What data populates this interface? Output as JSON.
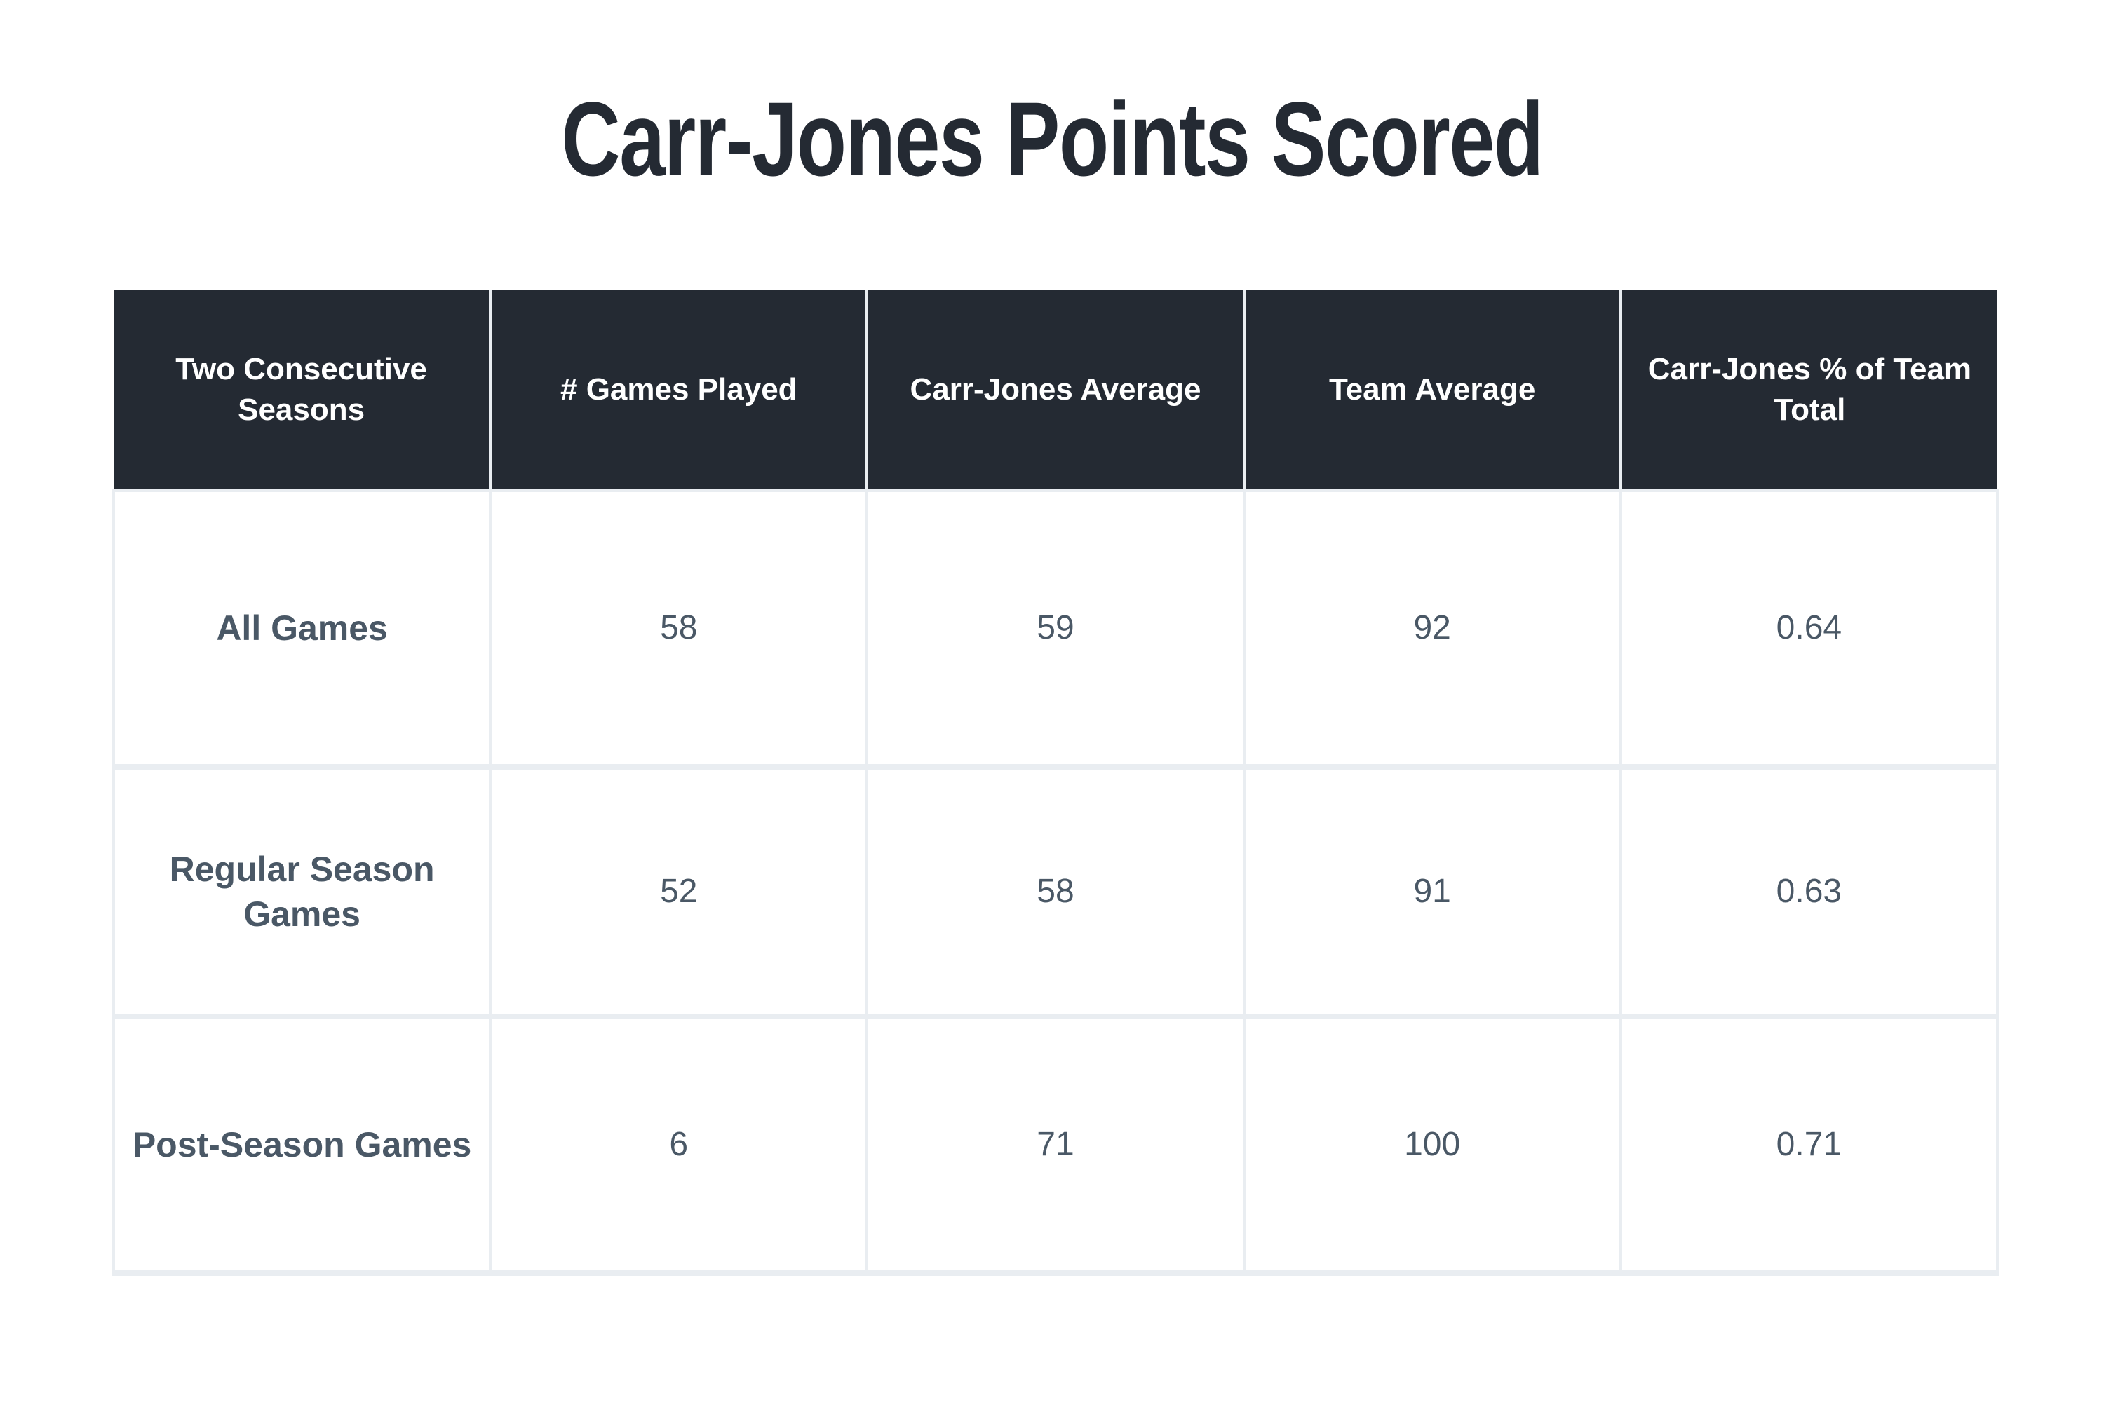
{
  "title": "Carr-Jones Points Scored",
  "colors": {
    "header_bg": "#242a33",
    "header_text": "#ffffff",
    "body_text": "#4a5866",
    "grid": "#e9edf1",
    "title": "#242a33"
  },
  "table": {
    "headers": [
      "Two Consecutive Seasons",
      "# Games Played",
      "Carr-Jones Average",
      "Team Average",
      "Carr-Jones % of Team Total"
    ],
    "rows": [
      {
        "label": "All Games",
        "games_played": "58",
        "carr_jones_avg": "59",
        "team_avg": "92",
        "pct_team_total": "0.64"
      },
      {
        "label": "Regular Season Games",
        "games_played": "52",
        "carr_jones_avg": "58",
        "team_avg": "91",
        "pct_team_total": "0.63"
      },
      {
        "label": "Post-Season Games",
        "games_played": "6",
        "carr_jones_avg": "71",
        "team_avg": "100",
        "pct_team_total": "0.71"
      }
    ]
  }
}
